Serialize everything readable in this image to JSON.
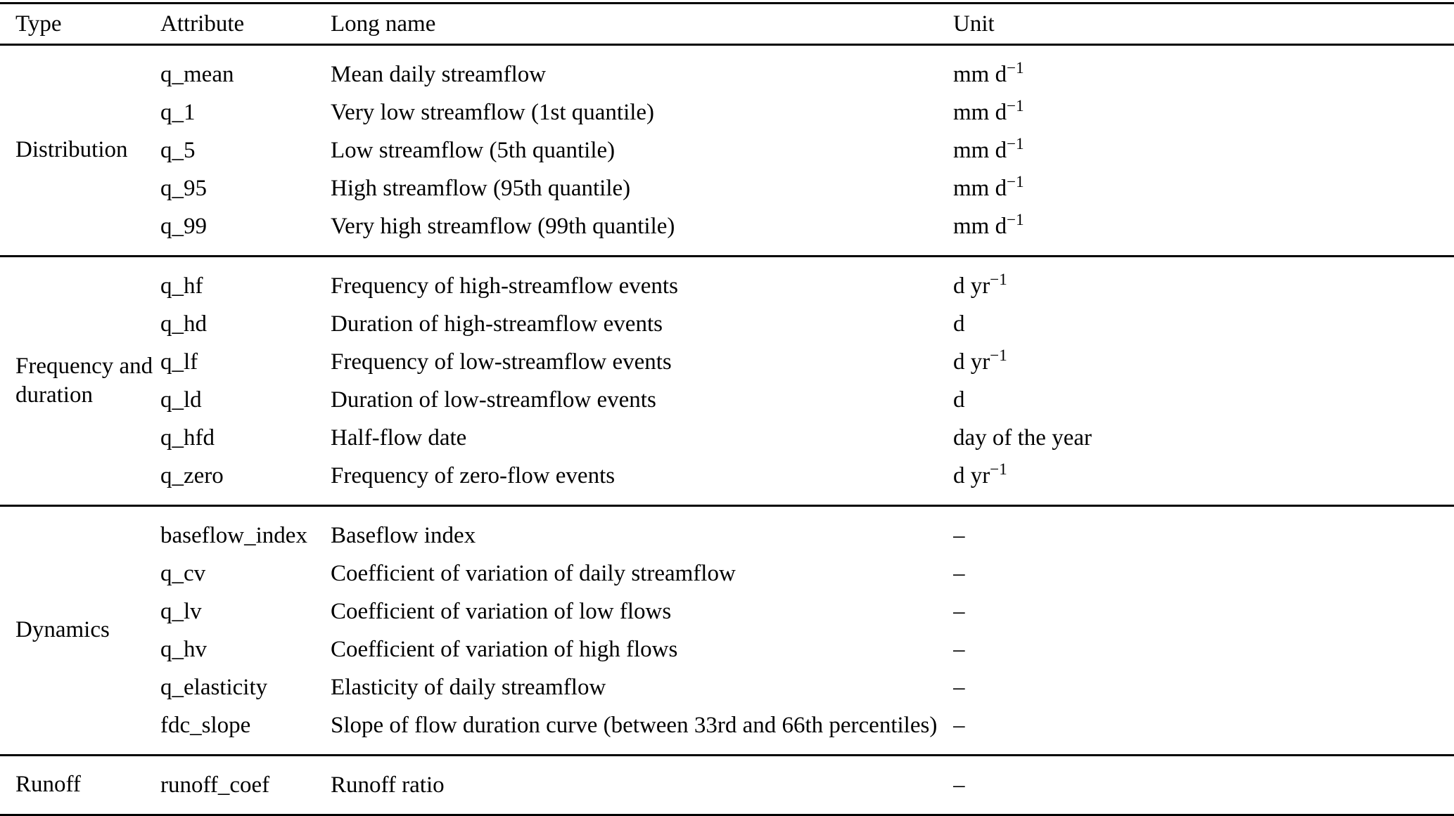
{
  "table": {
    "columns": [
      "Type",
      "Attribute",
      "Long name",
      "Unit"
    ],
    "groups": [
      {
        "type": "Distribution",
        "rows": [
          {
            "attribute": "q_mean",
            "long_name": "Mean daily streamflow",
            "unit": "mm d⁻¹"
          },
          {
            "attribute": "q_1",
            "long_name": "Very low streamflow (1st quantile)",
            "unit": "mm d⁻¹"
          },
          {
            "attribute": "q_5",
            "long_name": "Low streamflow (5th quantile)",
            "unit": "mm d⁻¹"
          },
          {
            "attribute": "q_95",
            "long_name": "High streamflow (95th quantile)",
            "unit": "mm d⁻¹"
          },
          {
            "attribute": "q_99",
            "long_name": "Very high streamflow (99th quantile)",
            "unit": "mm d⁻¹"
          }
        ]
      },
      {
        "type": "Frequency and duration",
        "rows": [
          {
            "attribute": "q_hf",
            "long_name": "Frequency of high-streamflow events",
            "unit": "d yr⁻¹"
          },
          {
            "attribute": "q_hd",
            "long_name": "Duration of high-streamflow events",
            "unit": "d"
          },
          {
            "attribute": "q_lf",
            "long_name": "Frequency of low-streamflow events",
            "unit": "d yr⁻¹"
          },
          {
            "attribute": "q_ld",
            "long_name": "Duration of low-streamflow events",
            "unit": "d"
          },
          {
            "attribute": "q_hfd",
            "long_name": "Half-flow date",
            "unit": "day of the year"
          },
          {
            "attribute": "q_zero",
            "long_name": "Frequency of zero-flow events",
            "unit": "d yr⁻¹"
          }
        ]
      },
      {
        "type": "Dynamics",
        "rows": [
          {
            "attribute": "baseflow_index",
            "long_name": "Baseflow index",
            "unit": "–"
          },
          {
            "attribute": "q_cv",
            "long_name": "Coefficient of variation of daily streamflow",
            "unit": "–"
          },
          {
            "attribute": "q_lv",
            "long_name": "Coefficient of variation of low flows",
            "unit": "–"
          },
          {
            "attribute": "q_hv",
            "long_name": "Coefficient of variation of high flows",
            "unit": "–"
          },
          {
            "attribute": "q_elasticity",
            "long_name": "Elasticity of daily streamflow",
            "unit": "–"
          },
          {
            "attribute": "fdc_slope",
            "long_name": "Slope of flow duration curve (between 33rd and 66th percentiles)",
            "unit": "–"
          }
        ]
      },
      {
        "type": "Runoff",
        "rows": [
          {
            "attribute": "runoff_coef",
            "long_name": "Runoff ratio",
            "unit": "–"
          }
        ]
      }
    ]
  }
}
